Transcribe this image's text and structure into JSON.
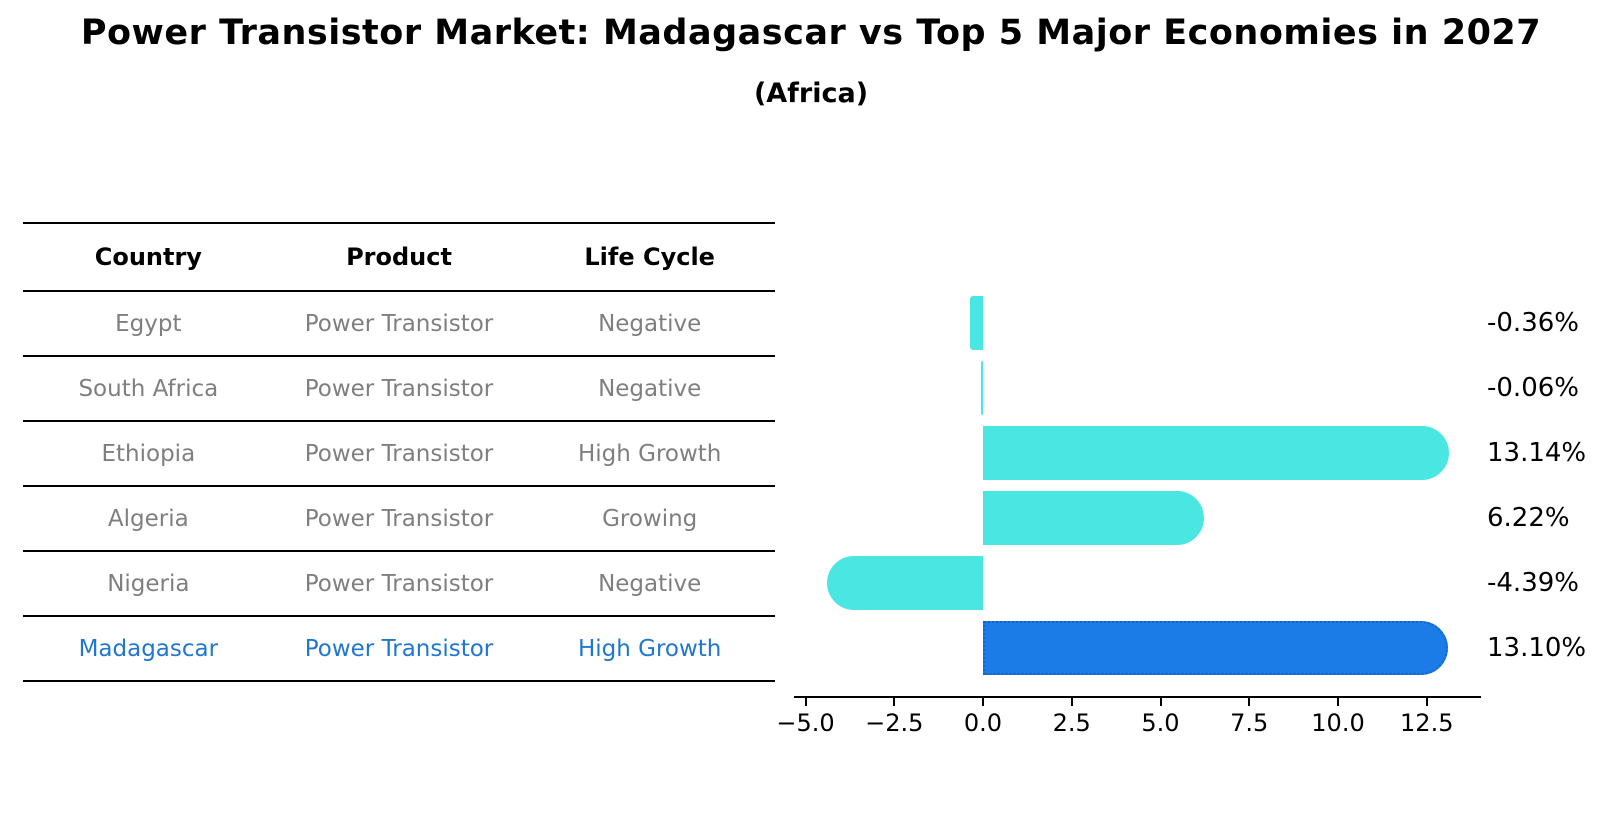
{
  "title": "Power Transistor Market: Madagascar vs Top 5 Major Economies in 2027",
  "subtitle": "(Africa)",
  "table": {
    "headers": [
      "Country",
      "Product",
      "Life Cycle"
    ],
    "rows": [
      {
        "country": "Egypt",
        "product": "Power Transistor",
        "life_cycle": "Negative",
        "highlight": false
      },
      {
        "country": "South Africa",
        "product": "Power Transistor",
        "life_cycle": "Negative",
        "highlight": false
      },
      {
        "country": "Ethiopia",
        "product": "Power Transistor",
        "life_cycle": "High Growth",
        "highlight": false
      },
      {
        "country": "Algeria",
        "product": "Power Transistor",
        "life_cycle": "Growing",
        "highlight": false
      },
      {
        "country": "Nigeria",
        "product": "Power Transistor",
        "life_cycle": "Negative",
        "highlight": false
      },
      {
        "country": "Madagascar",
        "product": "Power Transistor",
        "life_cycle": "High Growth",
        "highlight": true
      }
    ]
  },
  "chart_data": {
    "type": "bar",
    "orientation": "horizontal",
    "title": "Power Transistor Market: Madagascar vs Top 5 Major Economies in 2027 (Africa)",
    "categories": [
      "Egypt",
      "South Africa",
      "Ethiopia",
      "Algeria",
      "Nigeria",
      "Madagascar"
    ],
    "values": [
      -0.36,
      -0.06,
      13.14,
      6.22,
      -4.39,
      13.1
    ],
    "value_labels": [
      "-0.36%",
      "-0.06%",
      "13.14%",
      "6.22%",
      "-4.39%",
      "13.10%"
    ],
    "x_ticks": [
      -5.0,
      -2.5,
      0.0,
      2.5,
      5.0,
      7.5,
      10.0,
      12.5
    ],
    "x_tick_labels": [
      "−5.0",
      "−2.5",
      "0.0",
      "2.5",
      "5.0",
      "7.5",
      "10.0",
      "12.5"
    ],
    "xlim": [
      -5.3,
      14.1
    ],
    "grid": false,
    "legend": false,
    "highlight_index": 5,
    "bar_color": "#4AE7E2",
    "highlight_color": "#1B7CE8",
    "highlight_border_color": "#1565C8"
  },
  "colors": {
    "accent_blue": "#1F77D0",
    "bar_cyan": "#4AE7E2",
    "bar_blue": "#1B7CE8",
    "text_gray": "#7F7F7F",
    "line_black": "#000000"
  }
}
